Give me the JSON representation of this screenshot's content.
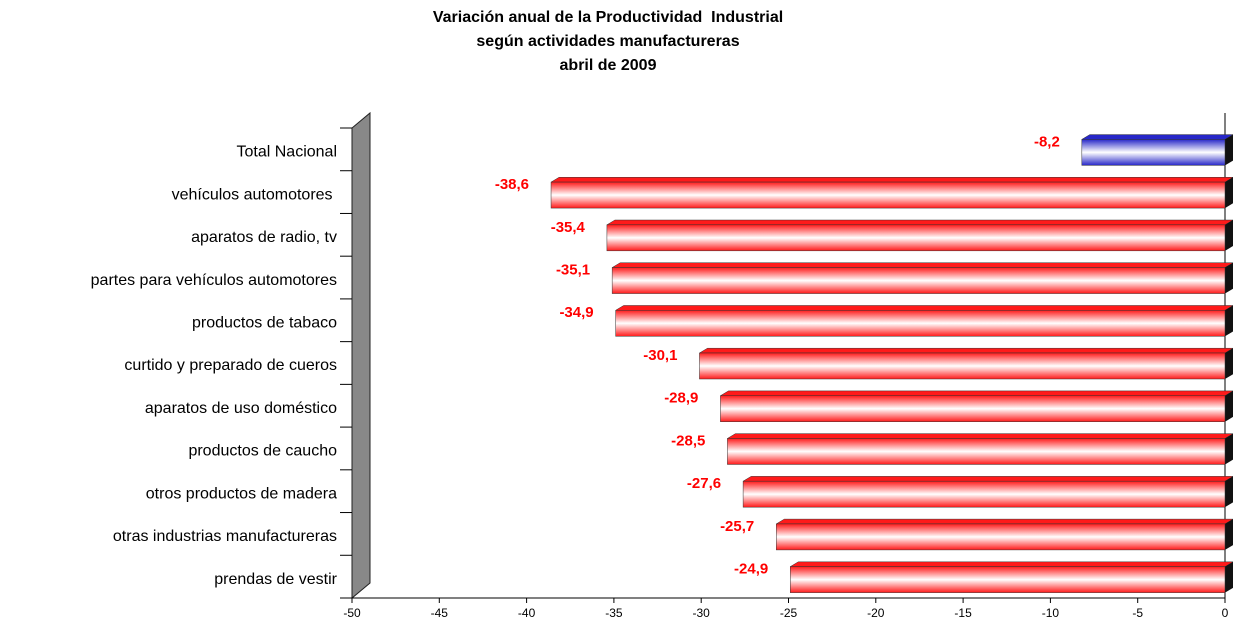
{
  "chart_data": {
    "type": "bar",
    "orientation": "horizontal",
    "title": [
      "Variación anual de la Productividad  Industrial",
      "según actividades manufactureras",
      "abril de 2009"
    ],
    "categories": [
      "Total Nacional",
      "vehículos automotores ",
      "aparatos de radio, tv",
      "partes para vehículos automotores",
      "productos de tabaco",
      "curtido y preparado de cueros",
      "aparatos de uso doméstico",
      "productos de caucho",
      "otros productos de madera",
      "otras industrias manufactureras",
      "prendas de vestir"
    ],
    "values": [
      -8.2,
      -38.6,
      -35.4,
      -35.1,
      -34.9,
      -30.1,
      -28.9,
      -28.5,
      -27.6,
      -25.7,
      -24.9
    ],
    "value_labels": [
      "-8,2",
      "-38,6",
      "-35,4",
      "-35,1",
      "-34,9",
      "-30,1",
      "-28,9",
      "-28,5",
      "-27,6",
      "-25,7",
      "-24,9"
    ],
    "colors": [
      "#2727c8",
      "#ff1a1a",
      "#ff1a1a",
      "#ff1a1a",
      "#ff1a1a",
      "#ff1a1a",
      "#ff1a1a",
      "#ff1a1a",
      "#ff1a1a",
      "#ff1a1a",
      "#ff1a1a"
    ],
    "label_color": "#ff0000",
    "xlim": [
      -50,
      0
    ],
    "xticks": [
      -50,
      -45,
      -40,
      -35,
      -30,
      -25,
      -20,
      -15,
      -10,
      -5,
      0
    ]
  }
}
